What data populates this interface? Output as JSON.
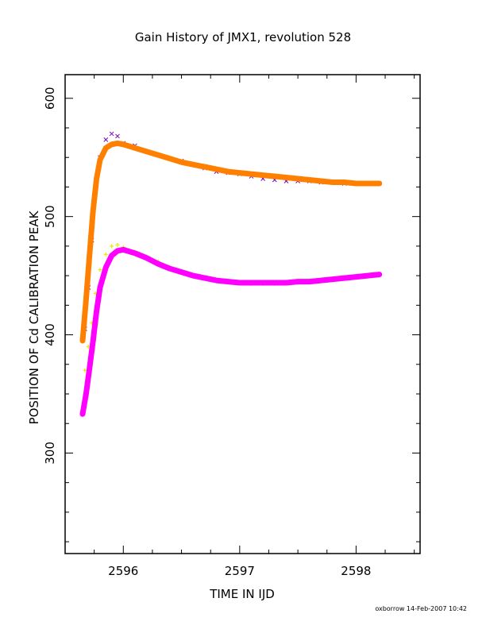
{
  "chart_data": {
    "type": "scatter",
    "title": "Gain History of JMX1, revolution 528",
    "xlabel": "TIME IN IJD",
    "ylabel": "POSITION OF Cd CALIBRATION PEAK",
    "xlim": [
      2595.5,
      2598.55
    ],
    "ylim": [
      215,
      620
    ],
    "x_ticks": [
      2596,
      2597,
      2598
    ],
    "x_tick_labels": [
      "2596",
      "2597",
      "2598"
    ],
    "y_ticks": [
      300,
      400,
      500,
      600
    ],
    "y_tick_labels": [
      "300",
      "400",
      "500",
      "600"
    ],
    "x_minor_step": 0.25,
    "y_minor_step": 25,
    "grid": false,
    "legend": "none",
    "footer": "oxborrow 14-Feb-2007 10:42",
    "series": [
      {
        "marker": "x",
        "color": "#7b00c8",
        "x": [
          2595.67,
          2595.7,
          2595.73,
          2595.76,
          2595.8,
          2595.85,
          2595.9,
          2595.95,
          2596.0,
          2596.1,
          2596.2,
          2596.3,
          2596.4,
          2596.5,
          2596.6,
          2596.7,
          2596.8,
          2596.9,
          2597.0,
          2597.1,
          2597.2,
          2597.3,
          2597.4,
          2597.5,
          2597.6,
          2597.7,
          2597.8,
          2597.9,
          2598.0,
          2598.1,
          2598.2
        ],
        "y": [
          405,
          440,
          480,
          525,
          550,
          565,
          570,
          568,
          562,
          560,
          555,
          552,
          549,
          547,
          544,
          541,
          538,
          537,
          536,
          534,
          532,
          531,
          530,
          530,
          530,
          529,
          529,
          528,
          528,
          528,
          528
        ]
      },
      {
        "marker": "line",
        "color": "#ff8000",
        "x": [
          2595.65,
          2595.68,
          2595.71,
          2595.74,
          2595.77,
          2595.8,
          2595.85,
          2595.9,
          2595.95,
          2596.0,
          2596.1,
          2596.2,
          2596.3,
          2596.4,
          2596.5,
          2596.6,
          2596.7,
          2596.8,
          2596.9,
          2597.0,
          2597.1,
          2597.2,
          2597.3,
          2597.4,
          2597.5,
          2597.6,
          2597.7,
          2597.8,
          2597.9,
          2598.0,
          2598.1,
          2598.2
        ],
        "y": [
          395,
          430,
          468,
          505,
          532,
          548,
          558,
          561,
          562,
          561,
          558,
          555,
          552,
          549,
          546,
          544,
          542,
          540,
          538,
          537,
          536,
          535,
          534,
          533,
          532,
          531,
          530,
          529,
          529,
          528,
          528,
          528
        ]
      },
      {
        "marker": "+",
        "color": "#e8e800",
        "x": [
          2595.67,
          2595.7,
          2595.73,
          2595.76,
          2595.8,
          2595.85,
          2595.9,
          2595.95,
          2596.0,
          2596.1,
          2596.2,
          2596.3,
          2596.4,
          2596.5,
          2596.6,
          2596.7,
          2596.8,
          2596.9,
          2597.0,
          2597.1,
          2597.2,
          2597.3,
          2597.4,
          2597.5,
          2597.6,
          2597.7,
          2597.8,
          2597.9,
          2598.0,
          2598.1,
          2598.2
        ],
        "y": [
          370,
          390,
          410,
          435,
          455,
          468,
          475,
          476,
          474,
          470,
          466,
          462,
          457,
          453,
          450,
          448,
          446,
          445,
          444,
          443,
          443,
          443,
          444,
          444,
          445,
          446,
          447,
          448,
          449,
          450,
          451
        ]
      },
      {
        "marker": "line",
        "color": "#ff00ff",
        "x": [
          2595.65,
          2595.68,
          2595.71,
          2595.74,
          2595.77,
          2595.8,
          2595.85,
          2595.9,
          2595.95,
          2596.0,
          2596.1,
          2596.2,
          2596.3,
          2596.4,
          2596.5,
          2596.6,
          2596.7,
          2596.8,
          2596.9,
          2597.0,
          2597.1,
          2597.2,
          2597.3,
          2597.4,
          2597.5,
          2597.6,
          2597.7,
          2597.8,
          2597.9,
          2598.0,
          2598.1,
          2598.2
        ],
        "y": [
          333,
          350,
          372,
          395,
          420,
          440,
          457,
          467,
          471,
          472,
          469,
          465,
          460,
          456,
          453,
          450,
          448,
          446,
          445,
          444,
          444,
          444,
          444,
          444,
          445,
          445,
          446,
          447,
          448,
          449,
          450,
          451
        ]
      }
    ]
  }
}
